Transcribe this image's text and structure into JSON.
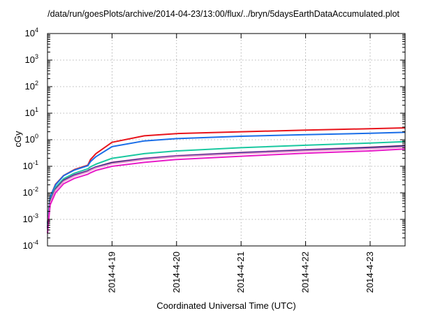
{
  "chart_data": {
    "type": "line",
    "title": "/data/run/goesPlots/archive/2014-04-23/13:00/flux/../bryn/5daysEarthDataAccumulated.plot",
    "xlabel": "Coordinated Universal Time (UTC)",
    "ylabel": "cGy",
    "y_scale": "log",
    "ylim": [
      0.0001,
      10000
    ],
    "xlim": [
      "2014-04-18 00:00",
      "2014-04-23 13:00"
    ],
    "x_ticks": [
      "2014-4-19",
      "2014-4-20",
      "2014-4-21",
      "2014-4-22",
      "2014-4-23"
    ],
    "y_ticks": [
      {
        "base": "10",
        "exp": "-4",
        "value": 0.0001
      },
      {
        "base": "10",
        "exp": "-3",
        "value": 0.001
      },
      {
        "base": "10",
        "exp": "-2",
        "value": 0.01
      },
      {
        "base": "10",
        "exp": "-1",
        "value": 0.1
      },
      {
        "base": "10",
        "exp": "0",
        "value": 1
      },
      {
        "base": "10",
        "exp": "1",
        "value": 10
      },
      {
        "base": "10",
        "exp": "2",
        "value": 100
      },
      {
        "base": "10",
        "exp": "3",
        "value": 1000
      },
      {
        "base": "10",
        "exp": "4",
        "value": 10000
      }
    ],
    "grid": true,
    "legend": "none",
    "x": [
      "2014-04-18 00:00",
      "2014-04-18 01:00",
      "2014-04-18 03:00",
      "2014-04-18 06:00",
      "2014-04-18 10:00",
      "2014-04-18 15:00",
      "2014-04-18 16:00",
      "2014-04-18 18:00",
      "2014-04-19 00:00",
      "2014-04-19 12:00",
      "2014-04-20 00:00",
      "2014-04-21 00:00",
      "2014-04-22 00:00",
      "2014-04-23 00:00",
      "2014-04-23 13:00"
    ],
    "series": [
      {
        "color": "#e8141c",
        "values": [
          0.0007,
          0.007,
          0.021,
          0.045,
          0.075,
          0.11,
          0.18,
          0.3,
          0.8,
          1.4,
          1.7,
          2.0,
          2.3,
          2.6,
          2.8
        ]
      },
      {
        "color": "#1a6ee8",
        "values": [
          0.0007,
          0.007,
          0.02,
          0.044,
          0.072,
          0.105,
          0.15,
          0.23,
          0.55,
          0.9,
          1.1,
          1.35,
          1.55,
          1.75,
          1.9
        ]
      },
      {
        "color": "#1ac8a0",
        "values": [
          0.0006,
          0.0055,
          0.016,
          0.034,
          0.055,
          0.08,
          0.095,
          0.12,
          0.2,
          0.3,
          0.38,
          0.5,
          0.62,
          0.75,
          0.85
        ]
      },
      {
        "color": "#c83cc8",
        "values": [
          0.0005,
          0.005,
          0.014,
          0.03,
          0.048,
          0.068,
          0.078,
          0.095,
          0.14,
          0.2,
          0.25,
          0.33,
          0.42,
          0.52,
          0.6
        ]
      },
      {
        "color": "#222222",
        "values": [
          0.00045,
          0.0048,
          0.0135,
          0.029,
          0.046,
          0.066,
          0.076,
          0.092,
          0.135,
          0.19,
          0.24,
          0.32,
          0.4,
          0.5,
          0.58
        ]
      },
      {
        "color": "#1a3cc8",
        "values": [
          0.00045,
          0.0046,
          0.013,
          0.028,
          0.045,
          0.064,
          0.074,
          0.09,
          0.13,
          0.185,
          0.235,
          0.31,
          0.39,
          0.48,
          0.55
        ]
      },
      {
        "color": "#e890c8",
        "values": [
          0.0004,
          0.0043,
          0.0125,
          0.027,
          0.043,
          0.062,
          0.071,
          0.087,
          0.125,
          0.18,
          0.23,
          0.3,
          0.38,
          0.46,
          0.53
        ]
      },
      {
        "color": "#e81cc8",
        "values": [
          0.0003,
          0.0035,
          0.01,
          0.022,
          0.035,
          0.05,
          0.057,
          0.07,
          0.1,
          0.14,
          0.18,
          0.24,
          0.31,
          0.38,
          0.45
        ]
      }
    ]
  }
}
